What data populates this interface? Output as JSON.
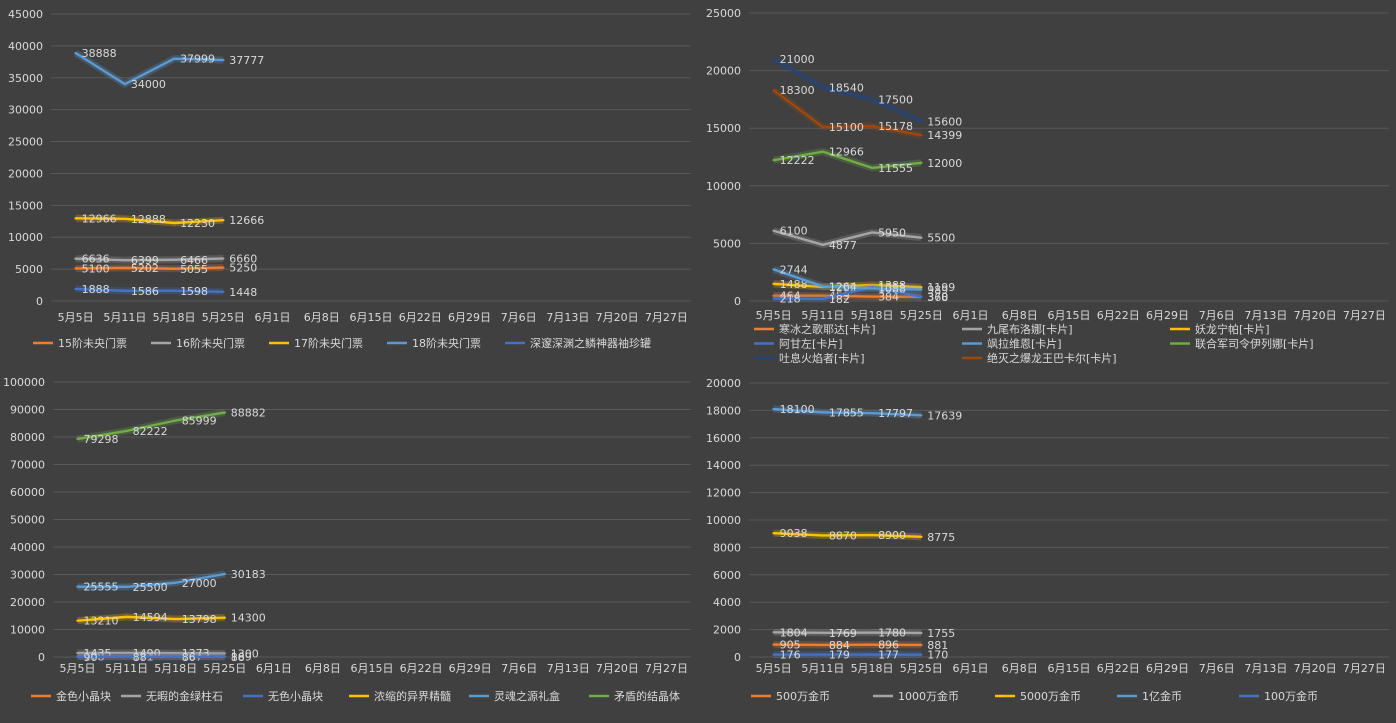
{
  "x_categories": [
    "5月5日",
    "5月11日",
    "5月18日",
    "5月25日",
    "6月1日",
    "6月8日",
    "6月15日",
    "6月22日",
    "6月29日",
    "7月6日",
    "7月13日",
    "7月20日",
    "7月27日"
  ],
  "colors": {
    "background": "#404040",
    "grid": "#595959",
    "tick": "#d9d9d9",
    "label": "#d9d9d9"
  },
  "chart_data": [
    {
      "type": "line",
      "ylim": [
        0,
        45000
      ],
      "ystep": 5000,
      "yticks": [
        "0",
        "5000",
        "10000",
        "15000",
        "20000",
        "25000",
        "30000",
        "35000",
        "40000",
        "45000"
      ],
      "legend_position": "bottom",
      "series": [
        {
          "name": "15阶未央门票",
          "color": "#ed7d31",
          "values": [
            5100,
            5202,
            5055,
            5250
          ],
          "labels": [
            "5100",
            "5202",
            "5055",
            "5250"
          ]
        },
        {
          "name": "16阶未央门票",
          "color": "#a5a5a5",
          "values": [
            6636,
            6399,
            6466,
            6660
          ],
          "labels": [
            "6636",
            "6399",
            "6466",
            "6660"
          ]
        },
        {
          "name": "17阶未央门票",
          "color": "#ffc000",
          "values": [
            12966,
            12888,
            12230,
            12666
          ],
          "labels": [
            "12966",
            "12888",
            "12230",
            "12666"
          ]
        },
        {
          "name": "18阶未央门票",
          "color": "#5b9bd5",
          "values": [
            38888,
            34000,
            37999,
            37777
          ],
          "labels": [
            "38888",
            "34000",
            "37999",
            "37777"
          ]
        },
        {
          "name": "深邃深渊之鳞神器袖珍罐",
          "color": "#4472c4",
          "values": [
            1888,
            1586,
            1598,
            1448
          ],
          "labels": [
            "1888",
            "1586",
            "1598",
            "1448"
          ]
        }
      ]
    },
    {
      "type": "line",
      "ylim": [
        0,
        25000
      ],
      "ystep": 5000,
      "yticks": [
        "0",
        "5000",
        "10000",
        "15000",
        "20000",
        "25000"
      ],
      "legend_position": "bottom",
      "series": [
        {
          "name": "寒冰之歌耶达[卡片]",
          "color": "#ed7d31",
          "values": [
            464,
            459,
            384,
            368
          ],
          "labels": [
            "464",
            "459",
            "384",
            "368"
          ]
        },
        {
          "name": "九尾布洛娜[卡片]",
          "color": "#a5a5a5",
          "values": [
            6100,
            4877,
            5950,
            5500
          ],
          "labels": [
            "6100",
            "4877",
            "5950",
            "5500"
          ]
        },
        {
          "name": "妖龙宁帕[卡片]",
          "color": "#ffc000",
          "values": [
            1488,
            1222,
            1388,
            1199
          ],
          "labels": [
            "1488",
            "1222",
            "1388",
            "1199"
          ]
        },
        {
          "name": "阿甘左[卡片]",
          "color": "#4472c4",
          "values": [
            218,
            182,
            1211,
            370
          ],
          "labels": [
            "218",
            "182",
            "1211",
            "370"
          ]
        },
        {
          "name": "飒拉维恩[卡片]",
          "color": "#5b9bd5",
          "values": [
            2744,
            1264,
            1088,
            989
          ],
          "labels": [
            "2744",
            "1264",
            "1088",
            "989"
          ]
        },
        {
          "name": "联合军司令伊列娜[卡片]",
          "color": "#70ad47",
          "values": [
            12222,
            12966,
            11555,
            12000
          ],
          "labels": [
            "12222",
            "12966",
            "11555",
            "12000"
          ]
        },
        {
          "name": "吐息火焰者[卡片]",
          "color": "#264478",
          "values": [
            21000,
            18540,
            17500,
            15600
          ],
          "labels": [
            "21000",
            "18540",
            "17500",
            "15600"
          ]
        },
        {
          "name": "绝灭之爆龙王巴卡尔[卡片]",
          "color": "#9e480e",
          "values": [
            18300,
            15100,
            15178,
            14399
          ],
          "labels": [
            "18300",
            "15100",
            "15178",
            "14399"
          ]
        }
      ]
    },
    {
      "type": "line",
      "ylim": [
        0,
        100000
      ],
      "ystep": 10000,
      "yticks": [
        "0",
        "10000",
        "20000",
        "30000",
        "40000",
        "50000",
        "60000",
        "70000",
        "80000",
        "90000",
        "100000"
      ],
      "legend_position": "bottom",
      "series": [
        {
          "name": "金色小晶块",
          "color": "#ed7d31",
          "values": [
            178,
            171,
            167,
            169
          ],
          "labels": [
            "178",
            "171",
            "167",
            "169"
          ]
        },
        {
          "name": "无暇的金绿柱石",
          "color": "#a5a5a5",
          "values": [
            1435,
            1490,
            1373,
            1300
          ],
          "labels": [
            "1435",
            "1490",
            "1373",
            "1300"
          ]
        },
        {
          "name": "无色小晶块",
          "color": "#4472c4",
          "values": [
            90,
            88,
            86,
            88
          ],
          "labels": [
            "90",
            "88",
            "86",
            "88"
          ]
        },
        {
          "name": "浓缩的异界精髓",
          "color": "#ffc000",
          "values": [
            13210,
            14594,
            13798,
            14300
          ],
          "labels": [
            "13210",
            "14594",
            "13798",
            "14300"
          ]
        },
        {
          "name": "灵魂之源礼盒",
          "color": "#5b9bd5",
          "values": [
            25555,
            25500,
            27000,
            30183
          ],
          "labels": [
            "25555",
            "25500",
            "27000",
            "30183"
          ]
        },
        {
          "name": "矛盾的结晶体",
          "color": "#70ad47",
          "values": [
            79298,
            82222,
            85999,
            88882
          ],
          "labels": [
            "79298",
            "82222",
            "85999",
            "88882"
          ]
        }
      ]
    },
    {
      "type": "line",
      "ylim": [
        0,
        20000
      ],
      "ystep": 2000,
      "yticks": [
        "0",
        "2000",
        "4000",
        "6000",
        "8000",
        "10000",
        "12000",
        "14000",
        "16000",
        "18000",
        "20000"
      ],
      "legend_position": "bottom",
      "series": [
        {
          "name": "500万金币",
          "color": "#ed7d31",
          "values": [
            905,
            884,
            896,
            881
          ],
          "labels": [
            "905",
            "884",
            "896",
            "881"
          ]
        },
        {
          "name": "1000万金币",
          "color": "#a5a5a5",
          "values": [
            1804,
            1769,
            1780,
            1755
          ],
          "labels": [
            "1804",
            "1769",
            "1780",
            "1755"
          ]
        },
        {
          "name": "5000万金币",
          "color": "#ffc000",
          "values": [
            9038,
            8870,
            8900,
            8775
          ],
          "labels": [
            "9038",
            "8870",
            "8900",
            "8775"
          ]
        },
        {
          "name": "1亿金币",
          "color": "#5b9bd5",
          "values": [
            18100,
            17855,
            17797,
            17639
          ],
          "labels": [
            "18100",
            "17855",
            "17797",
            "17639"
          ]
        },
        {
          "name": "100万金币",
          "color": "#4472c4",
          "values": [
            176,
            179,
            177,
            170
          ],
          "labels": [
            "176",
            "179",
            "177",
            "170"
          ]
        }
      ]
    }
  ]
}
